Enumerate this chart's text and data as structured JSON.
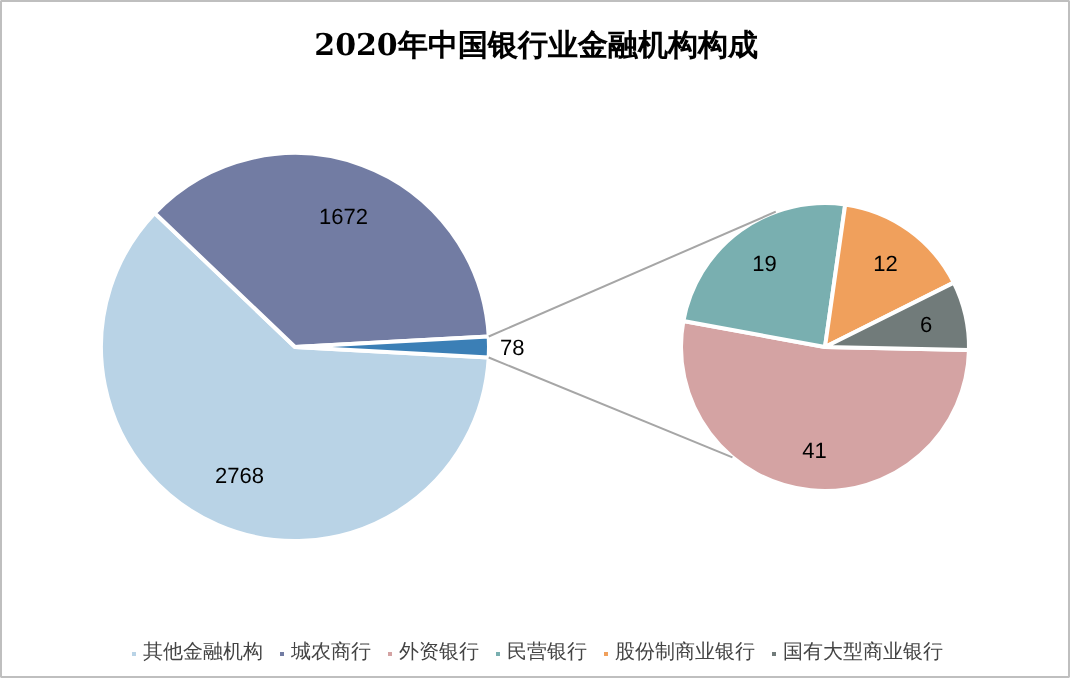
{
  "chart_data": [
    {
      "type": "pie",
      "title": "2020年中国银行业金融机构构成",
      "categories": [
        "其他金融机构",
        "城农商行",
        null
      ],
      "values": [
        2768,
        1672,
        78
      ],
      "colors": [
        "#b9d3e6",
        "#727ca3",
        "#3b7fb6"
      ],
      "data_labels": true,
      "legend": "bottom"
    },
    {
      "type": "pie",
      "categories": [
        "外资银行",
        "民营银行",
        "股份制商业银行",
        "国有大型商业银行"
      ],
      "values": [
        41,
        19,
        12,
        6
      ],
      "colors": [
        "#d4a3a3",
        "#79afb0",
        "#f0a05c",
        "#717b7a"
      ],
      "data_labels": true,
      "legend": "bottom"
    }
  ]
}
